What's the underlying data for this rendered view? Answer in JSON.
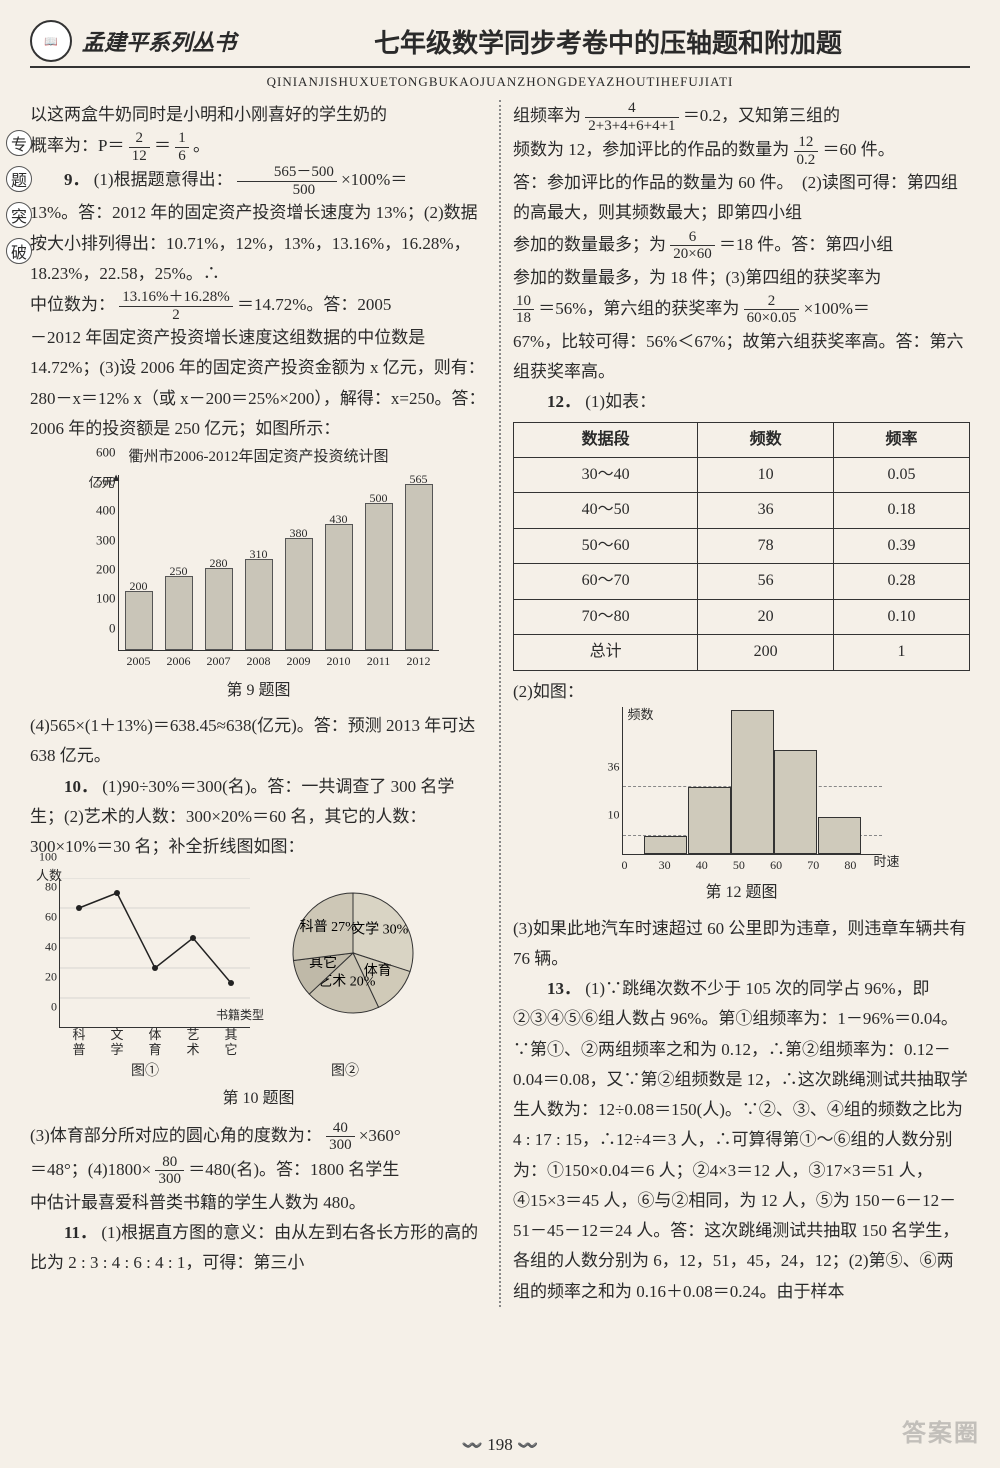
{
  "header": {
    "series": "孟建平系列丛书",
    "title": "七年级数学同步考卷中的压轴题和附加题",
    "pinyin": "QINIANJISHUXUETONGBUKAOJUANZHONGDEYAZHOUTIHEFUJIATI"
  },
  "side_badges": [
    "专",
    "题",
    "突",
    "破"
  ],
  "left": {
    "intro_line": "以这两盒牛奶同时是小明和小刚喜好的学生奶的",
    "prob_line_prefix": "概率为：P＝",
    "prob_frac1_n": "2",
    "prob_frac1_d": "12",
    "eq": "＝",
    "prob_frac2_n": "1",
    "prob_frac2_d": "6",
    "period": "。",
    "q9_label": "9．",
    "q9_p1_a": "(1)根据题意得出：",
    "q9_frac_a_n": "565－500",
    "q9_frac_a_d": "500",
    "q9_p1_b": "×100%＝",
    "q9_line2": "13%。答：2012 年的固定资产投资增长速度为 13%；(2)数据按大小排列得出：10.71%，12%，13%，13.16%，16.28%，18.23%，22.58，25%。∴",
    "q9_mid_prefix": "中位数为：",
    "q9_mid_n": "13.16%＋16.28%",
    "q9_mid_d": "2",
    "q9_mid_suffix": "＝14.72%。答：2005",
    "q9_line3": "－2012 年固定资产投资增长速度这组数据的中位数是 14.72%；(3)设 2006 年的固定资产投资金额为 x 亿元，则有：280－x＝12% x（或 x－200＝25%×200），解得：x=250。答：2006 年的投资额是 250 亿元；如图所示：",
    "q9_chart": {
      "title": "衢州市2006-2012年固定资产投资统计图",
      "ylabel": "亿元",
      "ymax": 600,
      "ytick_step": 100,
      "years": [
        "2005",
        "2006",
        "2007",
        "2008",
        "2009",
        "2010",
        "2011",
        "2012"
      ],
      "values": [
        200,
        250,
        280,
        310,
        380,
        430,
        500,
        565
      ],
      "bar_color": "#c9c5b8",
      "bar_border": "#555555"
    },
    "q9_figcap": "第 9 题图",
    "q9_p4": "(4)565×(1＋13%)＝638.45≈638(亿元)。答：预测 2013 年可达 638 亿元。",
    "q10_label": "10．",
    "q10_p1": "(1)90÷30%＝300(名)。答：一共调查了 300 名学生；(2)艺术的人数：300×20%＝60 名，其它的人数：300×10%＝30 名；补全折线图如图：",
    "q10_line": {
      "ylabel": "人数",
      "ymax": 100,
      "ytick_step": 20,
      "categories": [
        "科\\n普",
        "文\\n学",
        "体\\n育",
        "艺\\n术",
        "其\\n它"
      ],
      "values": [
        80,
        90,
        40,
        60,
        30
      ],
      "xlabel_right": "书籍类型",
      "cap": "图①",
      "grid_color": "#bbbbbb",
      "line_color": "#222222"
    },
    "q10_pie": {
      "cap": "图②",
      "slices": [
        {
          "label": "文学",
          "pct": 30,
          "color": "#d9d4c4"
        },
        {
          "label": "体育",
          "pct": 13,
          "color": "#d0cab8"
        },
        {
          "label": "艺术",
          "pct": 20,
          "color": "#c9c3b2"
        },
        {
          "label": "其它",
          "pct": 10,
          "color": "#bfb9a8"
        },
        {
          "label": "科普",
          "pct": 27,
          "color": "#cdc7b6"
        }
      ],
      "display_labels": [
        "其它\\n10%",
        "科普",
        "艺术\\n20%",
        "体育",
        "文学\\n30%"
      ]
    },
    "q10_figcap": "第 10 题图",
    "q10_p3_a": "(3)体育部分所对应的圆心角的度数为：",
    "q10_f3_n": "40",
    "q10_f3_d": "300",
    "q10_p3_b": "×360°",
    "q10_p4_a": "＝48°；(4)1800×",
    "q10_f4_n": "80",
    "q10_f4_d": "300",
    "q10_p4_b": "＝480(名)。答：1800 名学生",
    "q10_p4_c": "中估计最喜爱科普类书籍的学生人数为 480。",
    "q11_label": "11．",
    "q11_p1": "(1)根据直方图的意义：由从左到右各长方形的高的比为 2 : 3 : 4 : 6 : 4 : 1，可得：第三小"
  },
  "right": {
    "l1_a": "组频率为",
    "f1_n": "4",
    "f1_d": "2+3+4+6+4+1",
    "l1_b": "＝0.2，又知第三组的",
    "l2_a": "频数为 12，参加评比的作品的数量为",
    "f2_n": "12",
    "f2_d": "0.2",
    "l2_b": "＝60 件。",
    "l3": "答：参加评比的作品的数量为 60 件。　(2)读图可得：第四组的高最大，则其频数最大；即第四小组",
    "l4_a": "参加的数量最多；为",
    "f4_n": "6",
    "f4_d": "20×60",
    "l4_b": "＝18 件。答：第四小组",
    "l5": "参加的数量最多，为 18 件；(3)第四组的获奖率为",
    "f5a_n": "10",
    "f5a_d": "18",
    "l6_a": "＝56%，第六组的获奖率为",
    "f5b_n": "2",
    "f5b_d": "60×0.05",
    "l6_b": "×100%＝",
    "l7": "67%，比较可得：56%＜67%；故第六组获奖率高。答：第六组获奖率高。",
    "q12_label": "12．",
    "q12_p1": "(1)如表：",
    "table": {
      "headers": [
        "数据段",
        "频数",
        "频率"
      ],
      "rows": [
        [
          "30～40",
          "10",
          "0.05"
        ],
        [
          "40～50",
          "36",
          "0.18"
        ],
        [
          "50～60",
          "78",
          "0.39"
        ],
        [
          "60～70",
          "56",
          "0.28"
        ],
        [
          "70～80",
          "20",
          "0.10"
        ],
        [
          "总计",
          "200",
          "1"
        ]
      ]
    },
    "q12_p2": "(2)如图：",
    "hist": {
      "ylabel": "频数",
      "xlabel": "时速",
      "yticks": [
        10,
        36
      ],
      "xticks": [
        "0",
        "30",
        "40",
        "50",
        "60",
        "70",
        "80"
      ],
      "bins": [
        {
          "x": 30,
          "v": 10
        },
        {
          "x": 40,
          "v": 36
        },
        {
          "x": 50,
          "v": 78
        },
        {
          "x": 60,
          "v": 56
        },
        {
          "x": 70,
          "v": 20
        }
      ],
      "ymax": 80,
      "bar_color": "#cfcabb"
    },
    "q12_figcap": "第 12 题图",
    "q12_p3": "(3)如果此地汽车时速超过 60 公里即为违章，则违章车辆共有 76 辆。",
    "q13_label": "13．",
    "q13_body": "(1)∵跳绳次数不少于 105 次的同学占 96%，即②③④⑤⑥组人数占 96%。第①组频率为：1－96%＝0.04。∵第①、②两组频率之和为 0.12，∴第②组频率为：0.12－0.04＝0.08，又∵第②组频数是 12，∴这次跳绳测试共抽取学生人数为：12÷0.08＝150(人)。∵②、③、④组的频数之比为 4 : 17 : 15，∴12÷4＝3 人，∴可算得第①～⑥组的人数分别为：①150×0.04＝6 人；②4×3＝12 人，③17×3＝51 人，④15×3＝45 人，⑥与②相同，为 12 人，⑤为 150－6－12－51－45－12＝24 人。答：这次跳绳测试共抽取 150 名学生，各组的人数分别为 6，12，51，45，24，12；(2)第⑤、⑥两组的频率之和为 0.16＋0.08＝0.24。由于样本"
  },
  "page_number": "198",
  "watermark": "答案圈"
}
